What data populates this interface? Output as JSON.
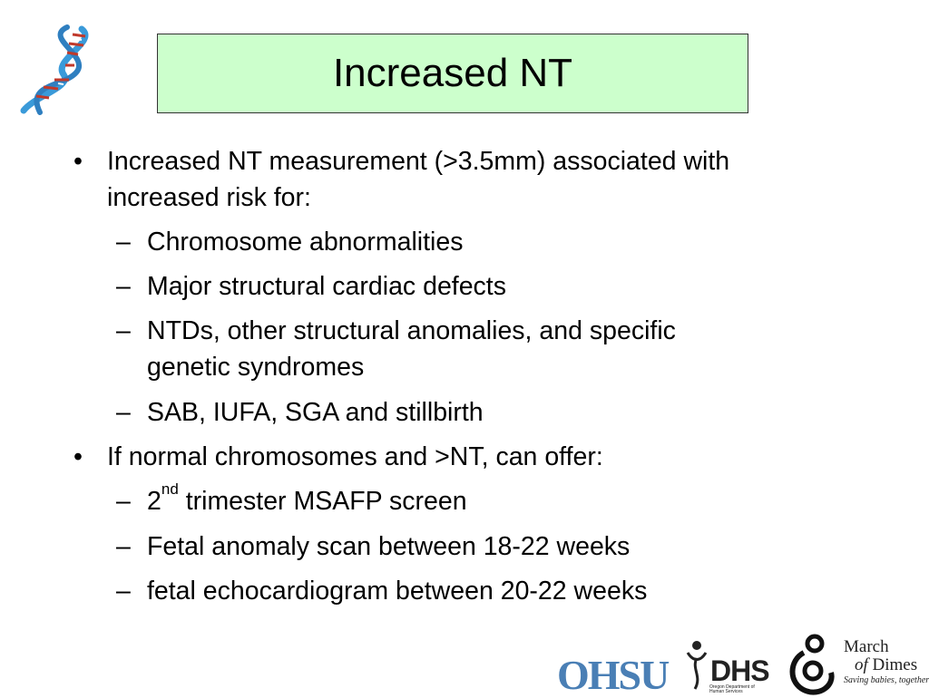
{
  "title": "Increased NT",
  "bullets": [
    {
      "lines": [
        "Increased NT measurement (>3.5mm) associated with",
        "increased risk for:"
      ],
      "subs": [
        {
          "lines": [
            "Chromosome abnormalities"
          ]
        },
        {
          "lines": [
            "Major structural cardiac defects"
          ]
        },
        {
          "lines": [
            "NTDs, other structural anomalies, and specific",
            "genetic syndromes"
          ]
        },
        {
          "lines": [
            "SAB, IUFA, SGA and stillbirth"
          ]
        }
      ]
    },
    {
      "lines": [
        "If normal chromosomes and >NT, can offer:"
      ],
      "subs": [
        {
          "lines": [
            "2"
          ],
          "sup": "nd",
          "rest": " trimester MSAFP screen"
        },
        {
          "lines": [
            "Fetal anomaly scan between 18-22 weeks"
          ]
        },
        {
          "lines": [
            "fetal echocardiogram between 20-22 weeks"
          ]
        }
      ]
    }
  ],
  "bullet_mark": "•",
  "sub_mark": "–",
  "logos": {
    "ohsu": "OHSU",
    "dhs": "DHS",
    "dhs_sub": "Oregon Department of Human Services",
    "mod_march": "March",
    "mod_of": "of",
    "mod_dimes": "Dimes",
    "mod_tagline": "Saving babies, together"
  },
  "colors": {
    "title_bg": "#ccffcc",
    "ohsu_blue": "#4a7fb5",
    "dna_blue": "#3a9ad9",
    "dna_red": "#c0392b"
  }
}
